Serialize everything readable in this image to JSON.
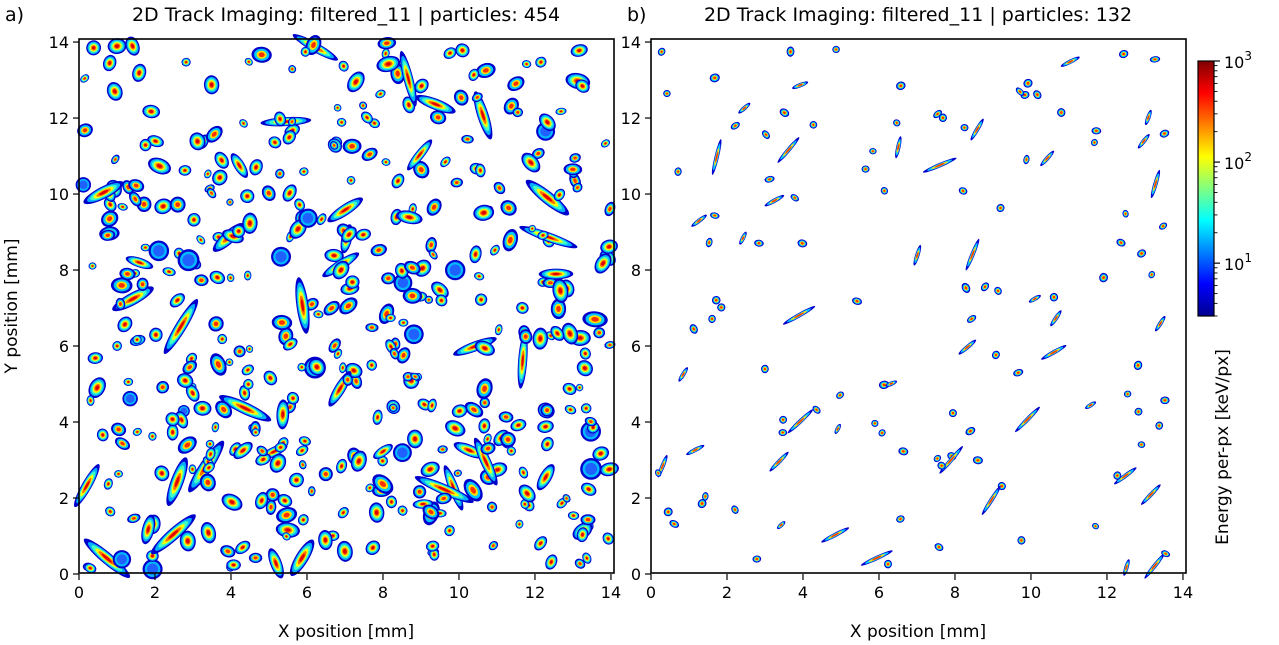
{
  "figure": {
    "colorbar": {
      "label": "Energy per-px [keV/px]",
      "scale": "log",
      "range": [
        3,
        1000
      ],
      "colormap": "jet",
      "tick_values": [
        10,
        100,
        1000
      ],
      "tick_labels": [
        {
          "base": "10",
          "exp": "1"
        },
        {
          "base": "10",
          "exp": "2"
        },
        {
          "base": "10",
          "exp": "3"
        }
      ],
      "colors": [
        "#00008f",
        "#0000ff",
        "#0080ff",
        "#00ffff",
        "#80ff80",
        "#ffff00",
        "#ff8000",
        "#ff0000",
        "#800000"
      ]
    }
  },
  "chart_data": [
    {
      "type": "heatmap",
      "panel_letter": "a)",
      "title": "2D Track Imaging: filtered_11 | particles: 454",
      "xlabel": "X position [mm]",
      "ylabel": "Y position [mm]",
      "xlim": [
        0,
        14.08
      ],
      "ylim": [
        0,
        14.08
      ],
      "xticks": [
        0,
        2,
        4,
        6,
        8,
        10,
        12,
        14
      ],
      "yticks": [
        0,
        2,
        4,
        6,
        8,
        10,
        12,
        14
      ],
      "grid": false,
      "particles": 454
    },
    {
      "type": "heatmap",
      "panel_letter": "b)",
      "title": "2D Track Imaging: filtered_11 | particles: 132",
      "xlabel": "X position [mm]",
      "ylabel": "",
      "xlim": [
        0,
        14.08
      ],
      "ylim": [
        0,
        14.08
      ],
      "xticks": [
        0,
        2,
        4,
        6,
        8,
        10,
        12,
        14
      ],
      "yticks": [
        0,
        2,
        4,
        6,
        8,
        10,
        12,
        14
      ],
      "grid": false,
      "particles": 132
    }
  ]
}
